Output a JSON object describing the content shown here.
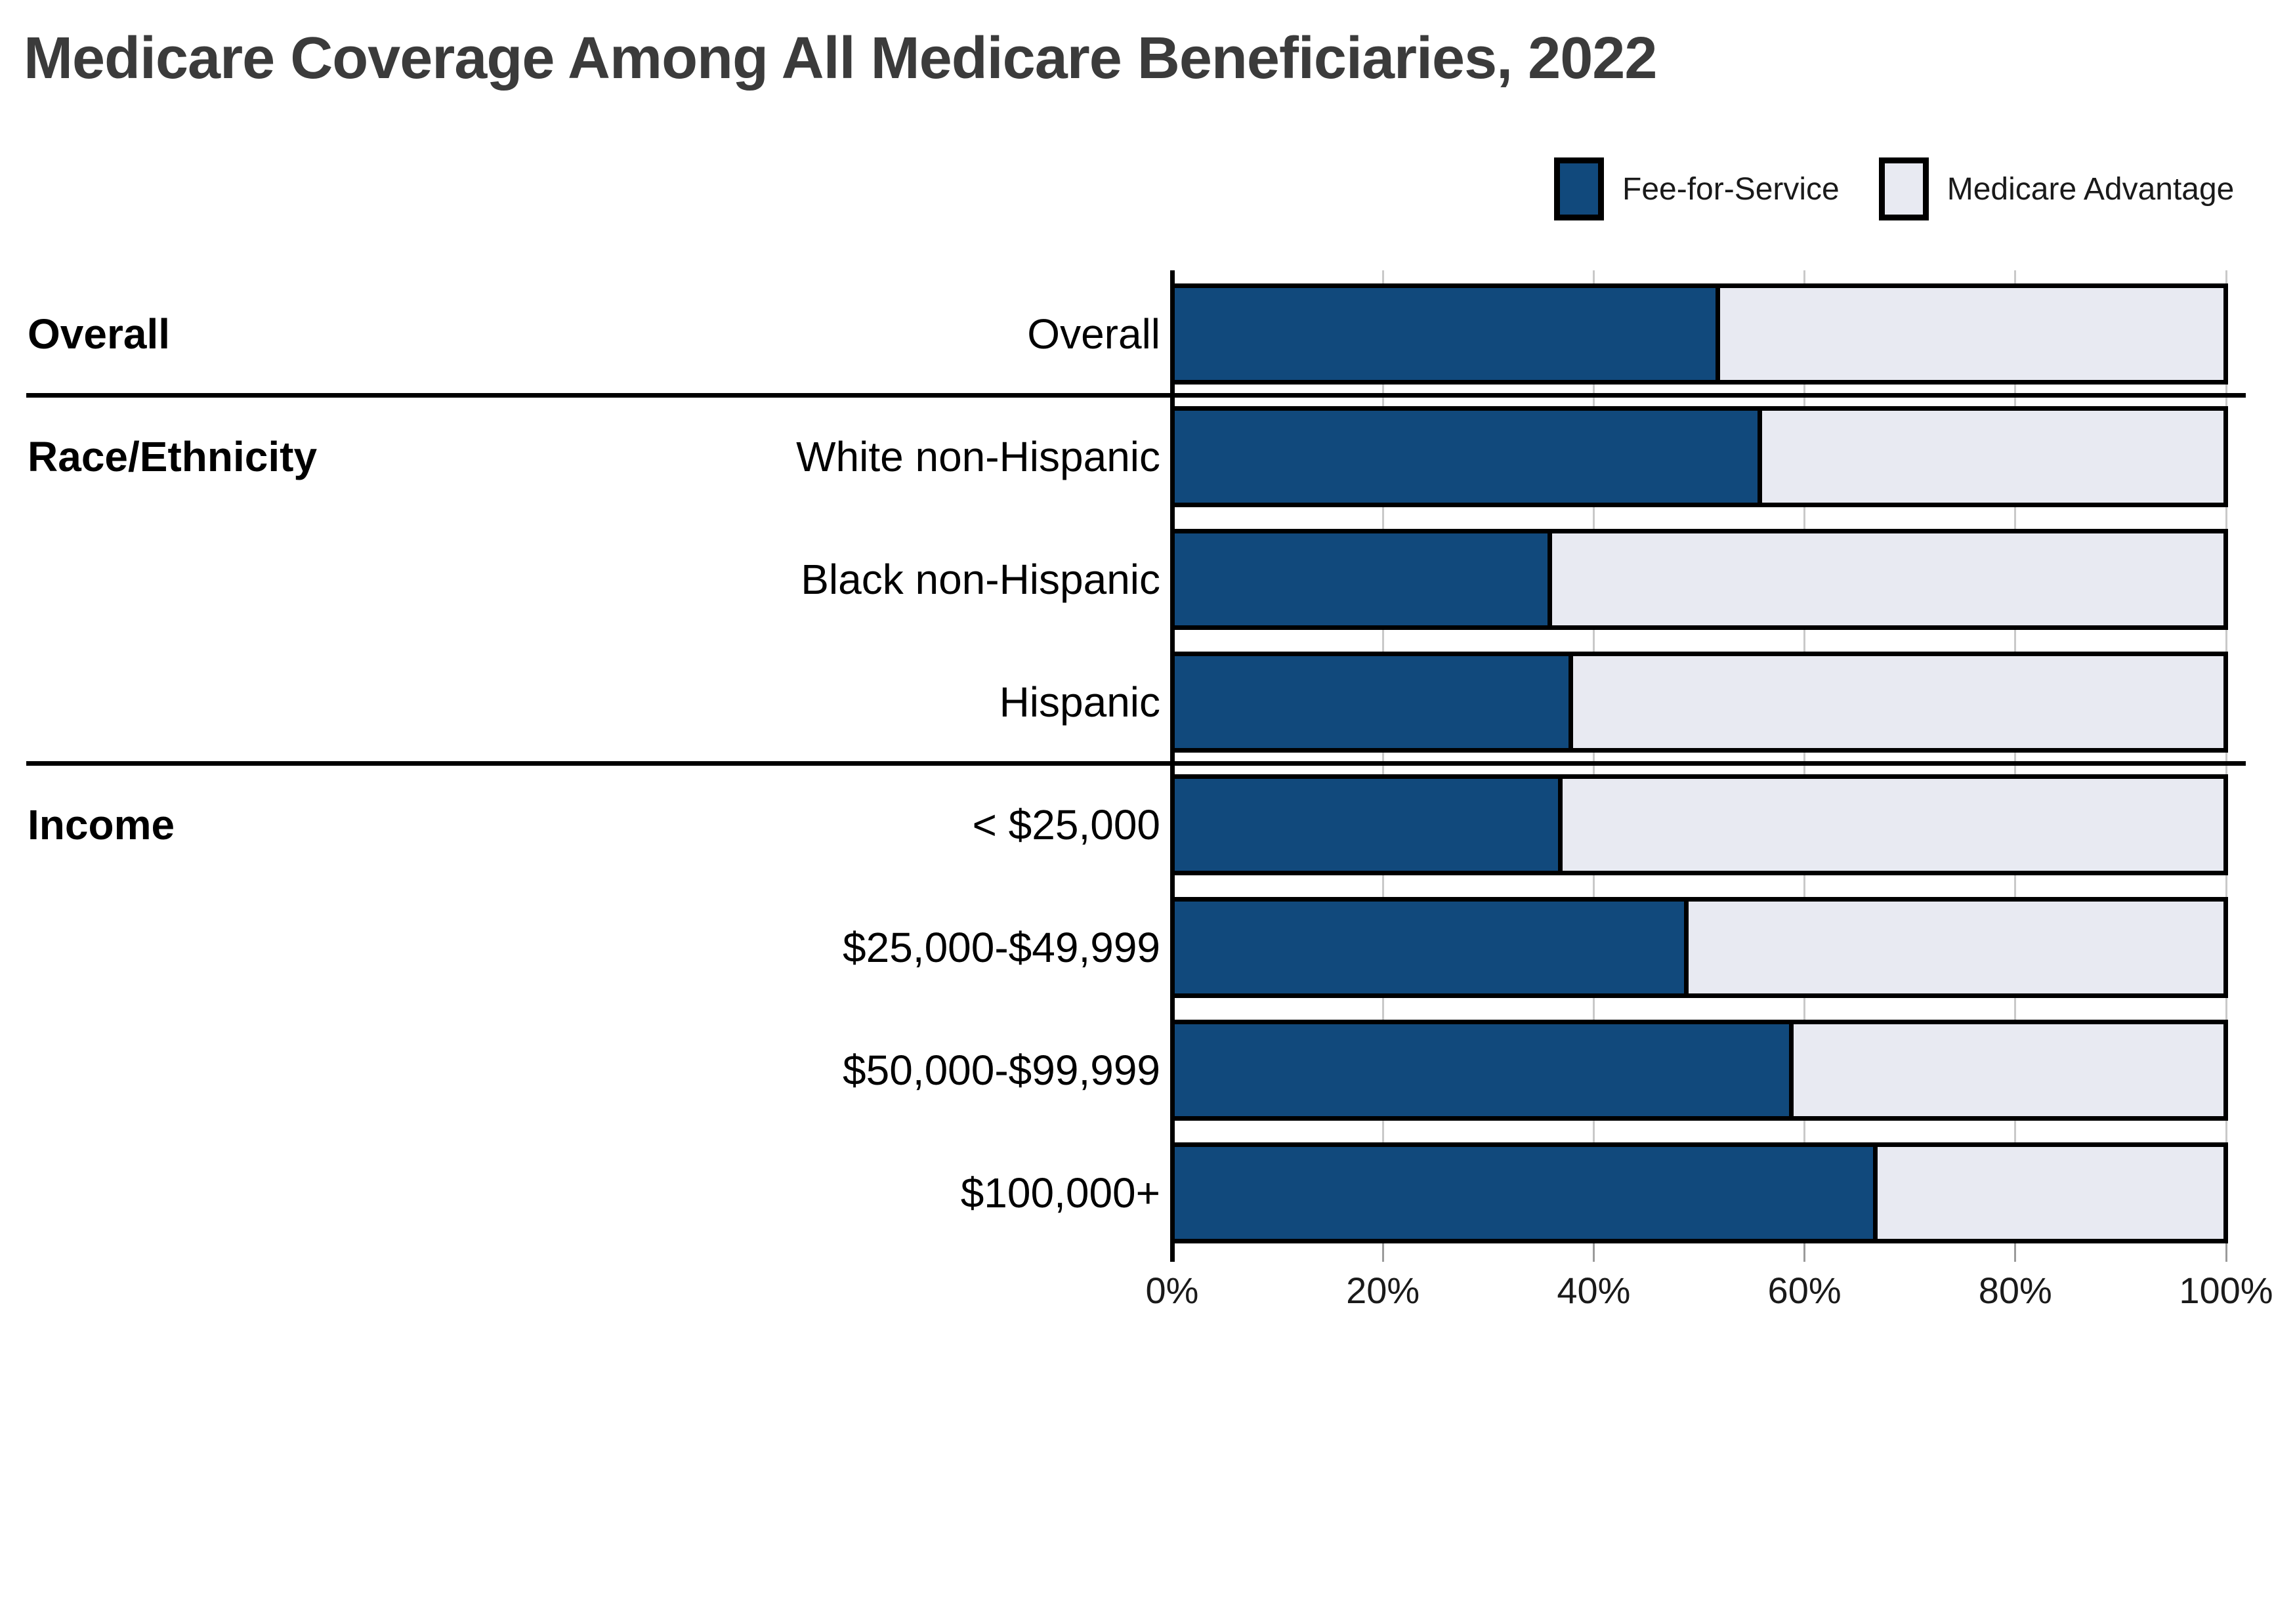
{
  "title": "Medicare Coverage Among All Medicare Beneficiaries, 2022",
  "legend": {
    "items": [
      {
        "label": "Fee-for-Service",
        "color": "#11497C"
      },
      {
        "label": "Medicare Advantage",
        "color": "#E8EAF2"
      }
    ]
  },
  "colors": {
    "fee_for_service": "#11497C",
    "medicare_advantage": "#E8EAF2",
    "bar_border": "#000000",
    "gridline": "#C9C9C9",
    "axis": "#000000",
    "title_text": "#3B3B3B",
    "label_text": "#000000"
  },
  "chart_data": {
    "type": "bar",
    "orientation": "horizontal",
    "stacked": true,
    "title": "Medicare Coverage Among All Medicare Beneficiaries, 2022",
    "categories": [
      "Overall",
      "White non-Hispanic",
      "Black non-Hispanic",
      "Hispanic",
      "< $25,000",
      "$25,000-$49,999",
      "$50,000-$99,999",
      "$100,000+"
    ],
    "series": [
      {
        "name": "Fee-for-Service",
        "values": [
          52,
          56,
          36,
          38,
          37,
          49,
          59,
          67
        ]
      },
      {
        "name": "Medicare Advantage",
        "values": [
          48,
          44,
          64,
          62,
          63,
          51,
          41,
          33
        ]
      }
    ],
    "sections": [
      {
        "label": "Overall",
        "first_row": 0,
        "last_row": 0
      },
      {
        "label": "Race/Ethnicity",
        "first_row": 1,
        "last_row": 3
      },
      {
        "label": "Income",
        "first_row": 4,
        "last_row": 7
      }
    ],
    "x_ticks": [
      "0%",
      "20%",
      "40%",
      "60%",
      "80%",
      "100%"
    ],
    "xlabel": "",
    "ylabel": "",
    "xlim": [
      0,
      100
    ],
    "grid": true,
    "legend_position": "top-right"
  }
}
